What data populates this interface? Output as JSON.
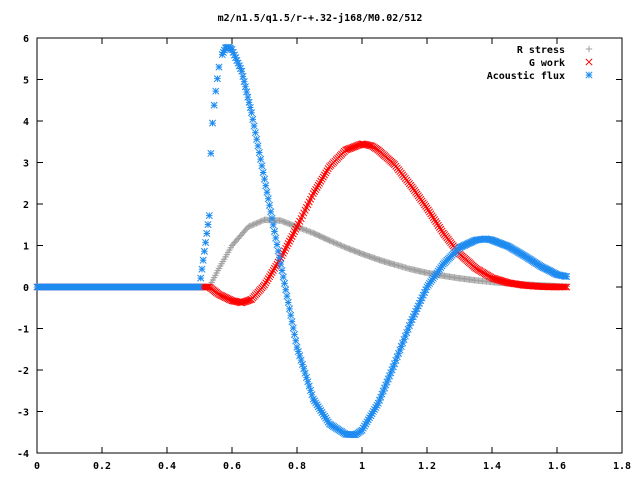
{
  "chart_data": {
    "type": "scatter",
    "title": "m2/n1.5/q1.5/r-+.32-j168/M0.02/512",
    "xlabel": "",
    "ylabel": "",
    "xlim": [
      0,
      1.8
    ],
    "ylim": [
      -4,
      6
    ],
    "xticks": [
      "0",
      "0.2",
      "0.4",
      "0.6",
      "0.8",
      "1",
      "1.2",
      "1.4",
      "1.6",
      "1.8"
    ],
    "yticks": [
      "-4",
      "-3",
      "-2",
      "-1",
      "0",
      "1",
      "2",
      "3",
      "4",
      "5",
      "6"
    ],
    "legend_position": "top-right",
    "series": [
      {
        "name": "R stress",
        "marker": "plus",
        "color": "#a0a0a0",
        "x": [
          0.0,
          0.1,
          0.2,
          0.3,
          0.4,
          0.5,
          0.53,
          0.56,
          0.6,
          0.65,
          0.7,
          0.75,
          0.8,
          0.85,
          0.9,
          0.95,
          1.0,
          1.05,
          1.1,
          1.15,
          1.2,
          1.25,
          1.3,
          1.35,
          1.4,
          1.45,
          1.5,
          1.55,
          1.6,
          1.63
        ],
        "y": [
          0,
          0,
          0,
          0,
          0,
          0,
          0,
          0.45,
          1.0,
          1.45,
          1.62,
          1.6,
          1.45,
          1.3,
          1.12,
          0.95,
          0.8,
          0.66,
          0.54,
          0.43,
          0.34,
          0.27,
          0.21,
          0.16,
          0.12,
          0.09,
          0.06,
          0.04,
          0.02,
          0.01
        ]
      },
      {
        "name": "G work",
        "marker": "cross",
        "color": "#ff0000",
        "x": [
          0.0,
          0.1,
          0.2,
          0.3,
          0.4,
          0.5,
          0.53,
          0.56,
          0.6,
          0.63,
          0.66,
          0.7,
          0.75,
          0.8,
          0.85,
          0.9,
          0.95,
          1.0,
          1.03,
          1.05,
          1.1,
          1.15,
          1.2,
          1.25,
          1.3,
          1.35,
          1.4,
          1.45,
          1.5,
          1.55,
          1.6,
          1.63
        ],
        "y": [
          0,
          0,
          0,
          0,
          0,
          0,
          0,
          -0.18,
          -0.33,
          -0.38,
          -0.3,
          0.05,
          0.7,
          1.45,
          2.25,
          2.9,
          3.3,
          3.45,
          3.4,
          3.3,
          2.95,
          2.45,
          1.9,
          1.3,
          0.8,
          0.45,
          0.22,
          0.1,
          0.04,
          0.01,
          0.0,
          0.0
        ]
      },
      {
        "name": "Acoustic flux",
        "marker": "star",
        "color": "#1e8bf0",
        "x": [
          0.0,
          0.1,
          0.2,
          0.3,
          0.4,
          0.5,
          0.53,
          0.535,
          0.54,
          0.545,
          0.55,
          0.555,
          0.56,
          0.57,
          0.58,
          0.59,
          0.6,
          0.63,
          0.66,
          0.7,
          0.75,
          0.8,
          0.85,
          0.9,
          0.95,
          0.98,
          1.0,
          1.05,
          1.1,
          1.15,
          1.2,
          1.25,
          1.3,
          1.35,
          1.38,
          1.4,
          1.45,
          1.5,
          1.55,
          1.6,
          1.63
        ],
        "y": [
          0,
          0,
          0,
          0,
          0,
          0,
          1.72,
          3.22,
          3.95,
          4.38,
          4.72,
          5.02,
          5.3,
          5.6,
          5.76,
          5.78,
          5.72,
          5.2,
          4.2,
          2.6,
          0.55,
          -1.45,
          -2.7,
          -3.3,
          -3.55,
          -3.56,
          -3.45,
          -2.8,
          -1.85,
          -0.85,
          0.0,
          0.55,
          0.95,
          1.13,
          1.16,
          1.13,
          0.98,
          0.75,
          0.5,
          0.3,
          0.25
        ]
      }
    ]
  }
}
